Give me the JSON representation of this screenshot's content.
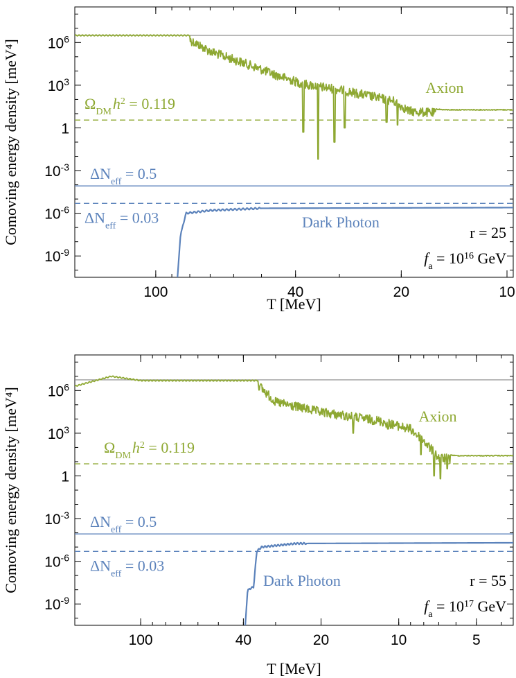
{
  "colors": {
    "axion": "#8ea832",
    "dark_photon": "#5b82bb",
    "reference": "#888888",
    "axis": "#000000"
  },
  "chart_data": [
    {
      "type": "line",
      "xlabel": "T [MeV]",
      "ylabel": "Comoving energy density [meV⁴]",
      "x_scale": "log-reversed",
      "y_scale": "log",
      "xlim": [
        170,
        9.6
      ],
      "ylim_log10": [
        -10.5,
        8.5
      ],
      "x_ticks": [
        {
          "v": 100,
          "label": "100"
        },
        {
          "v": 40,
          "label": "40"
        },
        {
          "v": 20,
          "label": "20"
        },
        {
          "v": 10,
          "label": "10"
        }
      ],
      "y_ticks": [
        {
          "e": 6,
          "label": "10^6"
        },
        {
          "e": 3,
          "label": "10^3"
        },
        {
          "e": 0,
          "label": "1"
        },
        {
          "e": -3,
          "label": "10^-3"
        },
        {
          "e": -6,
          "label": "10^-6"
        },
        {
          "e": -9,
          "label": "10^-9"
        }
      ],
      "hlines": [
        {
          "name": "ref",
          "log10y": 6.5,
          "style": "solid",
          "color": "reference"
        },
        {
          "name": "omega",
          "log10y": 0.55,
          "style": "dashed",
          "color": "axion"
        },
        {
          "name": "neff05",
          "log10y": -4.08,
          "style": "solid",
          "color": "dark_photon"
        },
        {
          "name": "neff003",
          "log10y": -5.3,
          "style": "dashed",
          "color": "dark_photon"
        }
      ],
      "axion": {
        "plateau_log10": 6.5,
        "onset_T": 80,
        "final_log10": 1.3,
        "approx_points": [
          [
            170,
            6.5
          ],
          [
            80,
            6.5
          ],
          [
            70,
            5.7
          ],
          [
            55,
            4.8
          ],
          [
            45,
            4.0
          ],
          [
            38,
            3.4
          ],
          [
            30,
            3.0
          ],
          [
            25,
            2.6
          ],
          [
            21,
            2.2
          ],
          [
            19,
            1.5
          ],
          [
            15,
            1.3
          ],
          [
            9.6,
            1.3
          ]
        ],
        "dips": [
          [
            38,
            -0.3
          ],
          [
            34.5,
            -2.2
          ],
          [
            31,
            -1.0
          ],
          [
            29,
            0.0
          ],
          [
            22,
            0.4
          ],
          [
            20.5,
            0.2
          ]
        ]
      },
      "dark_photon": {
        "rise_T": 84,
        "plateau_log10": -5.6,
        "approx_points": [
          [
            87,
            -11
          ],
          [
            85,
            -7.5
          ],
          [
            82,
            -6.0
          ],
          [
            70,
            -5.8
          ],
          [
            50,
            -5.65
          ],
          [
            9.6,
            -5.6
          ]
        ]
      },
      "labels": {
        "omega": "Ω",
        "omega_sub": "DM",
        "omega_h": "h",
        "omega_exp": "2",
        "omega_val": "= 0.119",
        "neff": "ΔN",
        "neff_sub": "eff",
        "neff05_val": "= 0.5",
        "neff003_val": "= 0.03",
        "axion": "Axion",
        "dark_photon": "Dark Photon",
        "r": "r = 25",
        "fa": "f",
        "fa_sub": "a",
        "fa_eq": " = 10",
        "fa_exp": "16",
        "fa_unit": " GeV"
      }
    },
    {
      "type": "line",
      "xlabel": "T [MeV]",
      "ylabel": "Comoving energy density [meV⁴]",
      "x_scale": "log-reversed",
      "y_scale": "log",
      "xlim": [
        180,
        3.6
      ],
      "ylim_log10": [
        -10.5,
        8.5
      ],
      "x_ticks": [
        {
          "v": 100,
          "label": "100"
        },
        {
          "v": 40,
          "label": "40"
        },
        {
          "v": 20,
          "label": "20"
        },
        {
          "v": 10,
          "label": "10"
        },
        {
          "v": 5,
          "label": "5"
        }
      ],
      "y_ticks": [
        {
          "e": 6,
          "label": "10^6"
        },
        {
          "e": 3,
          "label": "10^3"
        },
        {
          "e": 0,
          "label": "1"
        },
        {
          "e": -3,
          "label": "10^-3"
        },
        {
          "e": -6,
          "label": "10^-6"
        },
        {
          "e": -9,
          "label": "10^-9"
        }
      ],
      "hlines": [
        {
          "name": "ref",
          "log10y": 6.75,
          "style": "solid",
          "color": "reference"
        },
        {
          "name": "omega",
          "log10y": 0.85,
          "style": "dashed",
          "color": "axion"
        },
        {
          "name": "neff05",
          "log10y": -4.08,
          "style": "solid",
          "color": "dark_photon"
        },
        {
          "name": "neff003",
          "log10y": -5.3,
          "style": "dashed",
          "color": "dark_photon"
        }
      ],
      "axion": {
        "plateau_log10": 6.75,
        "onset_T": 35,
        "final_log10": 1.45,
        "approx_points": [
          [
            180,
            6.3
          ],
          [
            130,
            7.0
          ],
          [
            100,
            6.7
          ],
          [
            35,
            6.7
          ],
          [
            30,
            5.5
          ],
          [
            20,
            4.8
          ],
          [
            12,
            4.2
          ],
          [
            9,
            3.6
          ],
          [
            8,
            2.8
          ],
          [
            7,
            1.6
          ],
          [
            6,
            1.45
          ],
          [
            3.6,
            1.45
          ]
        ],
        "dips": [
          [
            15,
            3.0
          ],
          [
            11,
            3.3
          ],
          [
            8.2,
            1.5
          ],
          [
            7.3,
            0.0
          ],
          [
            6.9,
            -0.2
          ],
          [
            6.5,
            0.5
          ]
        ]
      },
      "dark_photon": {
        "rise_T": 38,
        "plateau_log10": -4.7,
        "approx_points": [
          [
            39.5,
            -11
          ],
          [
            38.5,
            -8.0
          ],
          [
            36.5,
            -7.8
          ],
          [
            35.5,
            -5.3
          ],
          [
            34,
            -5.0
          ],
          [
            25,
            -4.75
          ],
          [
            3.6,
            -4.7
          ]
        ]
      },
      "labels": {
        "omega": "Ω",
        "omega_sub": "DM",
        "omega_h": "h",
        "omega_exp": "2",
        "omega_val": "= 0.119",
        "neff": "ΔN",
        "neff_sub": "eff",
        "neff05_val": "= 0.5",
        "neff003_val": "= 0.03",
        "axion": "Axion",
        "dark_photon": "Dark Photon",
        "r": "r = 55",
        "fa": "f",
        "fa_sub": "a",
        "fa_eq": " = 10",
        "fa_exp": "17",
        "fa_unit": " GeV"
      }
    }
  ]
}
